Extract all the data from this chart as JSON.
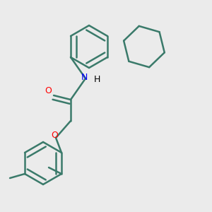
{
  "bg_color": "#ebebeb",
  "bond_color": "#3a7a6a",
  "atom_colors": {
    "O": "#ff0000",
    "N": "#0000ff",
    "C": "#000000"
  },
  "bond_width": 1.8,
  "figsize": [
    3.0,
    3.0
  ],
  "dpi": 100
}
